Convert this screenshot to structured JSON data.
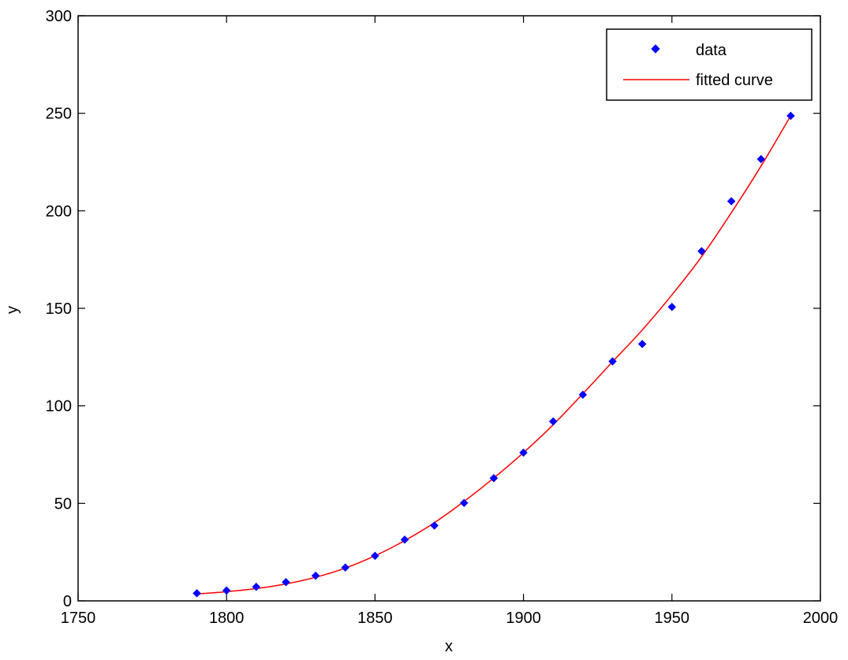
{
  "chart_data": {
    "type": "line",
    "xlabel": "x",
    "ylabel": "y",
    "xlim": [
      1750,
      2000
    ],
    "ylim": [
      0,
      300
    ],
    "xticks": [
      1750,
      1800,
      1850,
      1900,
      1950,
      2000
    ],
    "yticks": [
      0,
      50,
      100,
      150,
      200,
      250,
      300
    ],
    "grid": false,
    "legend_position": "top-right",
    "series": [
      {
        "name": "data",
        "kind": "markers",
        "marker": "diamond",
        "color": "#0000ff",
        "x": [
          1790,
          1800,
          1810,
          1820,
          1830,
          1840,
          1850,
          1860,
          1870,
          1880,
          1890,
          1900,
          1910,
          1920,
          1930,
          1940,
          1950,
          1960,
          1970,
          1980,
          1990
        ],
        "y": [
          3.9,
          5.3,
          7.2,
          9.6,
          12.9,
          17.1,
          23.1,
          31.4,
          38.6,
          50.2,
          62.9,
          76.0,
          92.0,
          105.7,
          122.8,
          131.7,
          150.7,
          179.3,
          204.9,
          226.5,
          248.7
        ]
      },
      {
        "name": "fitted curve",
        "kind": "line",
        "color": "#ff0000",
        "x": [
          1790,
          1800,
          1810,
          1820,
          1830,
          1840,
          1850,
          1860,
          1870,
          1880,
          1890,
          1900,
          1910,
          1920,
          1930,
          1940,
          1950,
          1960,
          1970,
          1980,
          1990
        ],
        "y": [
          3.5,
          4.7,
          6.3,
          8.7,
          12.1,
          16.8,
          23.1,
          30.9,
          40.1,
          51.0,
          63.0,
          76.0,
          90.3,
          106.2,
          122.6,
          138.9,
          156.9,
          176.5,
          199.0,
          222.9,
          248.7
        ]
      }
    ]
  }
}
